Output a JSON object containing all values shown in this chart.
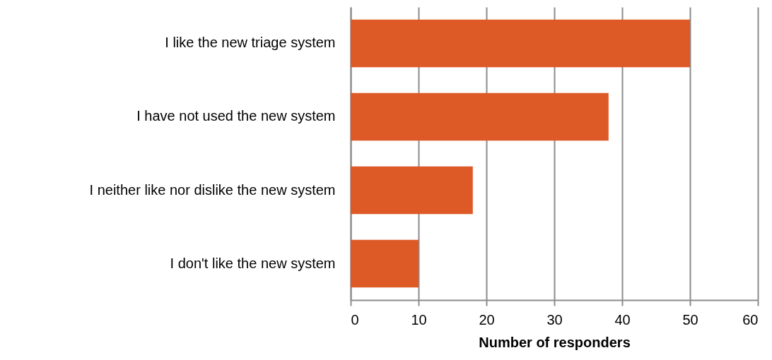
{
  "chart_data": {
    "type": "bar",
    "orientation": "horizontal",
    "xlabel": "Number of responders",
    "categories": [
      "I like the new triage system",
      "I have not used the new system",
      "I neither like nor dislike the new system",
      "I don't like the new system"
    ],
    "values": [
      50,
      38,
      18,
      10
    ],
    "color": "#dd5a26",
    "xlim": [
      0,
      60
    ],
    "xticks": [
      0,
      10,
      20,
      30,
      40,
      50,
      60
    ],
    "grid": "x"
  }
}
